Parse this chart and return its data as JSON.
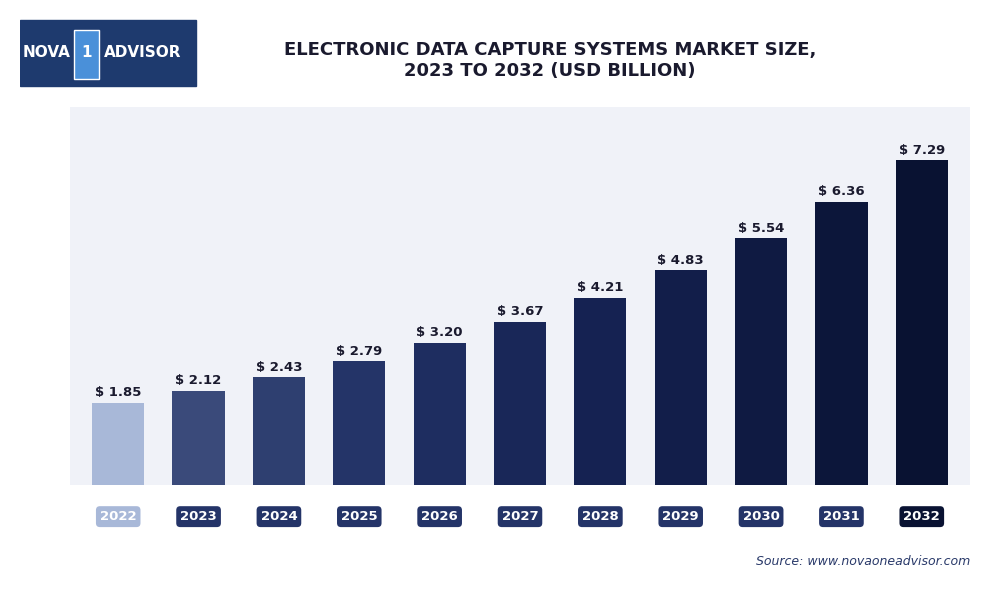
{
  "title_line1": "ELECTRONIC DATA CAPTURE SYSTEMS MARKET SIZE,",
  "title_line2": "2023 TO 2032 (USD BILLION)",
  "categories": [
    "2022",
    "2023",
    "2024",
    "2025",
    "2026",
    "2027",
    "2028",
    "2029",
    "2030",
    "2031",
    "2032"
  ],
  "values": [
    1.85,
    2.12,
    2.43,
    2.79,
    3.2,
    3.67,
    4.21,
    4.83,
    5.54,
    6.36,
    7.29
  ],
  "bar_colors": [
    "#a8b8d8",
    "#3a4a7a",
    "#2e3f70",
    "#243468",
    "#1e2d60",
    "#192758",
    "#152252",
    "#121e4a",
    "#0f1a42",
    "#0c163a",
    "#091232"
  ],
  "tick_label_colors": [
    "#a8b8d8",
    "#1e2d60",
    "#1e2d60",
    "#1e2d60",
    "#1e2d60",
    "#1e2d60",
    "#1e2d60",
    "#1e2d60",
    "#1e2d60",
    "#1e2d60",
    "#091232"
  ],
  "tick_bg_colors": [
    "#a8b8d8",
    "#243468",
    "#243468",
    "#243468",
    "#243468",
    "#243468",
    "#243468",
    "#243468",
    "#243468",
    "#243468",
    "#091232"
  ],
  "value_labels": [
    "$ 1.85",
    "$ 2.12",
    "$ 2.43",
    "$ 2.79",
    "$ 3.20",
    "$ 3.67",
    "$ 4.21",
    "$ 4.83",
    "$ 5.54",
    "$ 6.36",
    "$ 7.29"
  ],
  "ylim": [
    0,
    8.5
  ],
  "ylabel": "",
  "source_text": "Source: www.novaoneadvisor.com",
  "bg_color": "#ffffff",
  "plot_bg_color": "#f0f2f8",
  "grid_color": "#ffffff",
  "title_color": "#1a1a2e",
  "value_label_color": "#1a1a2e"
}
